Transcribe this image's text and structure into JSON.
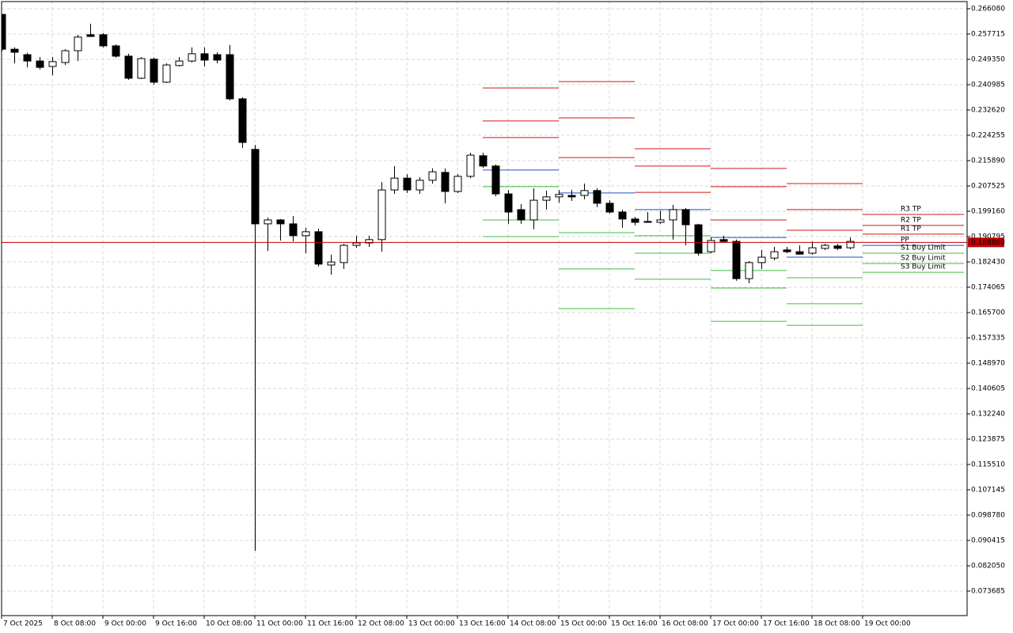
{
  "chart_data": {
    "type": "candlestick",
    "categories": [
      "7 Oct 2025",
      null,
      null,
      null,
      "8 Oct 08:00",
      null,
      null,
      null,
      "9 Oct 00:00",
      null,
      null,
      null,
      "9 Oct 16:00",
      null,
      null,
      null,
      "10 Oct 08:00",
      null,
      null,
      null,
      "11 Oct 00:00",
      null,
      null,
      null,
      "11 Oct 16:00",
      null,
      null,
      null,
      "12 Oct 08:00",
      null,
      null,
      null,
      "13 Oct 00:00",
      null,
      null,
      null,
      "13 Oct 16:00",
      null,
      null,
      null,
      "14 Oct 08:00",
      null,
      null,
      null,
      "15 Oct 00:00",
      null,
      null,
      null,
      "15 Oct 16:00",
      null,
      null,
      null,
      "16 Oct 08:00",
      null,
      null,
      null,
      "17 Oct 00:00",
      null,
      null,
      null,
      "17 Oct 16:00",
      null,
      null,
      null,
      "18 Oct 08:00",
      null,
      null,
      null,
      "19 Oct 00:00"
    ],
    "open": [
      0.2642,
      0.2527,
      0.2509,
      0.2488,
      0.247,
      0.2483,
      0.2522,
      0.2575,
      0.2575,
      0.2538,
      0.2504,
      0.2431,
      0.2494,
      0.2418,
      0.2473,
      0.2488,
      0.2512,
      0.2509,
      0.2509,
      0.2363,
      0.2196,
      0.195,
      0.1963,
      0.195,
      0.1911,
      0.1924,
      0.1814,
      0.1822,
      0.1879,
      0.1887,
      0.1898,
      0.2062,
      0.2101,
      0.2062,
      0.2094,
      0.212,
      0.2057,
      0.2107,
      0.2175,
      0.2141,
      0.2049,
      0.1997,
      0.1963,
      0.2028,
      0.2039,
      0.2044,
      0.2044,
      0.206,
      0.2018,
      0.1989,
      0.1966,
      0.1958,
      0.1955,
      0.1963,
      0.1997,
      0.1947,
      0.1858,
      0.1898,
      0.1892,
      0.1769,
      0.1822,
      0.1837,
      0.1864,
      0.1858,
      0.1853,
      0.1869,
      0.1877,
      0.1871,
      null
    ],
    "high": [
      0.2642,
      0.2533,
      0.2515,
      0.2501,
      0.2501,
      0.2527,
      0.2575,
      0.2611,
      0.258,
      0.2543,
      0.2512,
      0.2501,
      0.2499,
      0.248,
      0.2501,
      0.2533,
      0.2533,
      0.2517,
      0.2541,
      0.2368,
      0.2211,
      0.1971,
      0.1966,
      0.1976,
      0.1937,
      0.1934,
      0.1848,
      0.1884,
      0.1911,
      0.1911,
      0.2088,
      0.2141,
      0.2114,
      0.2104,
      0.2133,
      0.2133,
      0.2114,
      0.2185,
      0.2185,
      0.2146,
      0.2062,
      0.2015,
      0.2067,
      0.206,
      0.2062,
      0.2062,
      0.2083,
      0.2067,
      0.2028,
      0.1997,
      0.1973,
      0.1989,
      0.1994,
      0.2013,
      0.2002,
      0.195,
      0.1905,
      0.1911,
      0.1898,
      0.1827,
      0.1864,
      0.1874,
      0.1874,
      0.1879,
      0.1892,
      0.1884,
      0.1884,
      0.1905,
      null
    ],
    "low": [
      0.252,
      0.248,
      0.2467,
      0.246,
      0.2441,
      0.2475,
      0.2488,
      0.2569,
      0.2533,
      0.2499,
      0.2426,
      0.2428,
      0.241,
      0.2415,
      0.247,
      0.2483,
      0.247,
      0.248,
      0.2358,
      0.2201,
      0.087,
      0.1861,
      0.1895,
      0.1892,
      0.1853,
      0.1809,
      0.1782,
      0.1801,
      0.1871,
      0.1874,
      0.1858,
      0.2049,
      0.2052,
      0.2049,
      0.2083,
      0.2018,
      0.2052,
      0.2101,
      0.2135,
      0.2041,
      0.195,
      0.195,
      0.1932,
      0.1997,
      0.202,
      0.2026,
      0.2031,
      0.2005,
      0.1984,
      0.1937,
      0.1945,
      0.1955,
      0.195,
      0.1898,
      0.1879,
      0.1845,
      0.1853,
      0.189,
      0.1762,
      0.1754,
      0.1801,
      0.183,
      0.1853,
      0.1848,
      0.1848,
      0.1864,
      0.1864,
      0.1866,
      null
    ],
    "close": [
      0.2527,
      0.2517,
      0.2488,
      0.2467,
      0.2486,
      0.2522,
      0.2567,
      0.2569,
      0.2538,
      0.2504,
      0.2431,
      0.2496,
      0.2418,
      0.2475,
      0.2488,
      0.2512,
      0.2491,
      0.2491,
      0.2363,
      0.2219,
      0.195,
      0.1963,
      0.195,
      0.1911,
      0.1924,
      0.1817,
      0.1824,
      0.1879,
      0.1887,
      0.1898,
      0.2062,
      0.2101,
      0.2062,
      0.2094,
      0.2122,
      0.2057,
      0.2107,
      0.2177,
      0.2141,
      0.2049,
      0.1989,
      0.1963,
      0.2028,
      0.2039,
      0.2047,
      0.2039,
      0.206,
      0.2018,
      0.1989,
      0.1966,
      0.1955,
      0.1955,
      0.1963,
      0.1997,
      0.1947,
      0.1853,
      0.1895,
      0.1892,
      0.1769,
      0.1822,
      0.184,
      0.1858,
      0.1858,
      0.185,
      0.1871,
      0.1879,
      0.1869,
      0.1892,
      null
    ],
    "bull_color": "#ffffff",
    "bear_color": "#000000",
    "wick_color": "#000000",
    "ylim": [
      0.065581,
      0.268433
    ],
    "yticks": [
      {
        "value": 0.26608,
        "label": "0.266080"
      },
      {
        "value": 0.257715,
        "label": "0.257715"
      },
      {
        "value": 0.24935,
        "label": "0.249350"
      },
      {
        "value": 0.240985,
        "label": "0.240985"
      },
      {
        "value": 0.23262,
        "label": "0.232620"
      },
      {
        "value": 0.224255,
        "label": "0.224255"
      },
      {
        "value": 0.21589,
        "label": "0.215890"
      },
      {
        "value": 0.207525,
        "label": "0.207525"
      },
      {
        "value": 0.19916,
        "label": "0.199160"
      },
      {
        "value": 0.190795,
        "label": "0.190795"
      },
      {
        "value": 0.18243,
        "label": "0.182430"
      },
      {
        "value": 0.174065,
        "label": "0.174065"
      },
      {
        "value": 0.1657,
        "label": "0.165700"
      },
      {
        "value": 0.157335,
        "label": "0.157335"
      },
      {
        "value": 0.14897,
        "label": "0.148970"
      },
      {
        "value": 0.140605,
        "label": "0.140605"
      },
      {
        "value": 0.13224,
        "label": "0.132240"
      },
      {
        "value": 0.123875,
        "label": "0.123875"
      },
      {
        "value": 0.11551,
        "label": "0.115510"
      },
      {
        "value": 0.107145,
        "label": "0.107145"
      },
      {
        "value": 0.09878,
        "label": "0.098780"
      },
      {
        "value": 0.090415,
        "label": "0.090415"
      },
      {
        "value": 0.08205,
        "label": "0.082050"
      },
      {
        "value": 0.073685,
        "label": "0.073685"
      }
    ],
    "grid": true,
    "current_price": {
      "value": 0.18888,
      "label": "0.188880",
      "color": "#c00000"
    },
    "pivots": {
      "levels": [
        {
          "name": "R3 TP",
          "color": "#d01818"
        },
        {
          "name": "R2 TP",
          "color": "#d01818"
        },
        {
          "name": "R1 TP",
          "color": "#d01818"
        },
        {
          "name": "PP",
          "color": "#1f4fc4"
        },
        {
          "name": "S1 Buy Limit",
          "color": "#3cbf3c"
        },
        {
          "name": "S2 Buy Limit",
          "color": "#3cbf3c"
        },
        {
          "name": "S3 Buy Limit",
          "color": "#3cbf3c"
        }
      ],
      "periods": [
        [
          0.2399,
          0.229,
          0.2235,
          0.2128,
          0.2073,
          0.1963,
          0.1908
        ],
        [
          0.242,
          0.23,
          0.2169,
          0.2052,
          0.1921,
          0.1801,
          0.167
        ],
        [
          0.2198,
          0.2141,
          0.2054,
          0.1997,
          0.1911,
          0.1853,
          0.1767
        ],
        [
          0.2133,
          0.2073,
          0.1963,
          0.1905,
          0.1796,
          0.1738,
          0.1628
        ],
        [
          0.2083,
          0.1997,
          0.1929,
          0.184,
          0.1772,
          0.1686,
          0.1615
        ],
        [
          0.1981,
          0.1945,
          0.1916,
          0.1879,
          0.1853,
          0.1819,
          0.179
        ]
      ]
    }
  }
}
